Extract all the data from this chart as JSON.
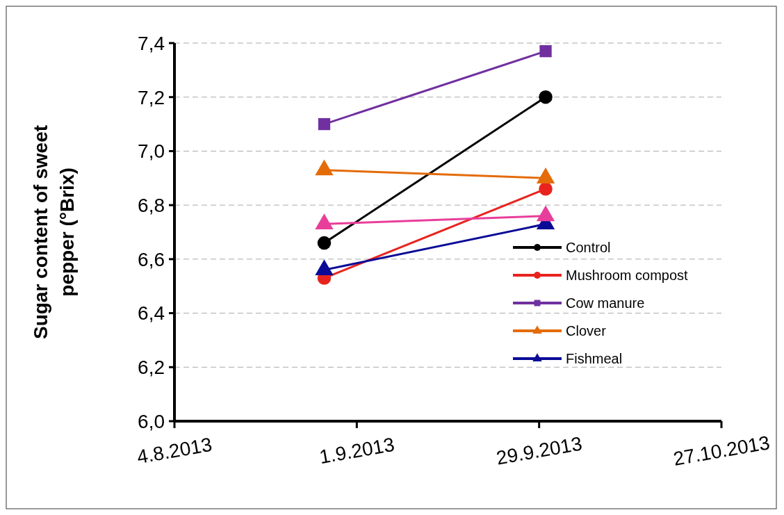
{
  "chart_data": {
    "type": "line",
    "ylabel": "Sugar content of sweet pepper (°Brix)",
    "x": [
      "2013-08-27",
      "2013-09-30"
    ],
    "xlim": [
      "2013-08-04",
      "2013-10-27"
    ],
    "xticks": [
      {
        "value": "2013-08-04",
        "label": "4.8.2013"
      },
      {
        "value": "2013-09-01",
        "label": "1.9.2013"
      },
      {
        "value": "2013-09-29",
        "label": "29.9.2013"
      },
      {
        "value": "2013-10-27",
        "label": "27.10.2013"
      }
    ],
    "ylim": [
      6.0,
      7.4
    ],
    "yticks": [
      {
        "value": 6.0,
        "label": "6,0"
      },
      {
        "value": 6.2,
        "label": "6,2"
      },
      {
        "value": 6.4,
        "label": "6,4"
      },
      {
        "value": 6.6,
        "label": "6,6"
      },
      {
        "value": 6.8,
        "label": "6,8"
      },
      {
        "value": 7.0,
        "label": "7,0"
      },
      {
        "value": 7.2,
        "label": "7,2"
      },
      {
        "value": 7.4,
        "label": "7,4"
      }
    ],
    "grid": "y",
    "legend": "bottom right",
    "series": [
      {
        "name": "Control",
        "color": "#000000",
        "marker": "circle",
        "values": [
          6.66,
          7.2
        ]
      },
      {
        "name": "Mushroom compost",
        "color": "#e8231e",
        "marker": "circle",
        "values": [
          6.53,
          6.86
        ]
      },
      {
        "name": "Cow manure",
        "color": "#7030a0",
        "marker": "square",
        "values": [
          7.1,
          7.37
        ]
      },
      {
        "name": "Clover",
        "color": "#e36c09",
        "marker": "triangle",
        "values": [
          6.93,
          6.9
        ]
      },
      {
        "name": "Fishmeal",
        "color": "#0a0a96",
        "marker": "triangle",
        "values": [
          6.56,
          6.73
        ]
      },
      {
        "color": "#e83e9b",
        "marker": "triangle",
        "values": [
          6.73,
          6.76
        ]
      }
    ]
  }
}
